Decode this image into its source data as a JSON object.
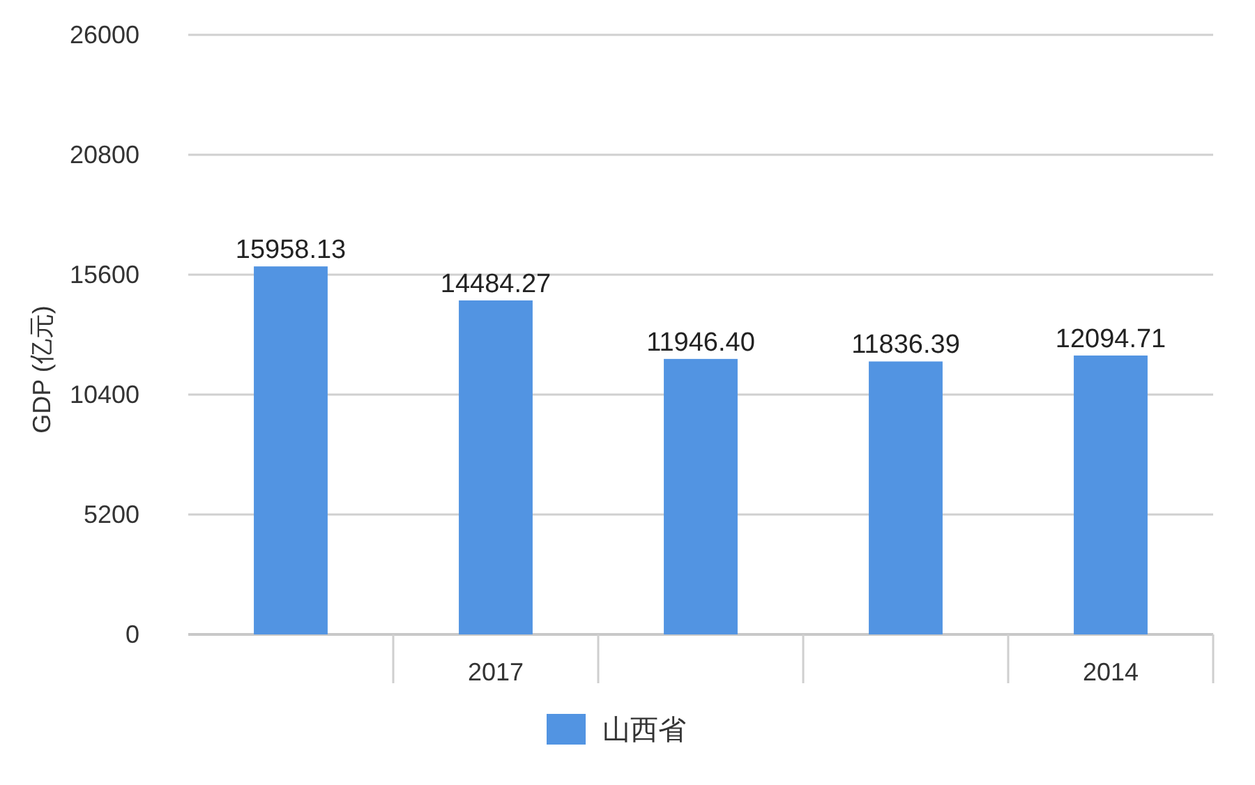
{
  "chart_data": {
    "type": "bar",
    "ylabel": "GDP (亿元)",
    "categories": [
      null,
      "2017",
      null,
      null,
      "2014"
    ],
    "series": [
      {
        "name": "山西省",
        "color": "#5294e2",
        "values": [
          15958.13,
          14484.27,
          11946.4,
          11836.39,
          12094.71
        ]
      }
    ],
    "value_labels": [
      "15958.13",
      "14484.27",
      "11946.40",
      "11836.39",
      "12094.71"
    ],
    "ylim": [
      0,
      26000
    ],
    "yticks": [
      0,
      5200,
      10400,
      15600,
      20800,
      26000
    ],
    "grid": "y",
    "legend": "bottom"
  }
}
